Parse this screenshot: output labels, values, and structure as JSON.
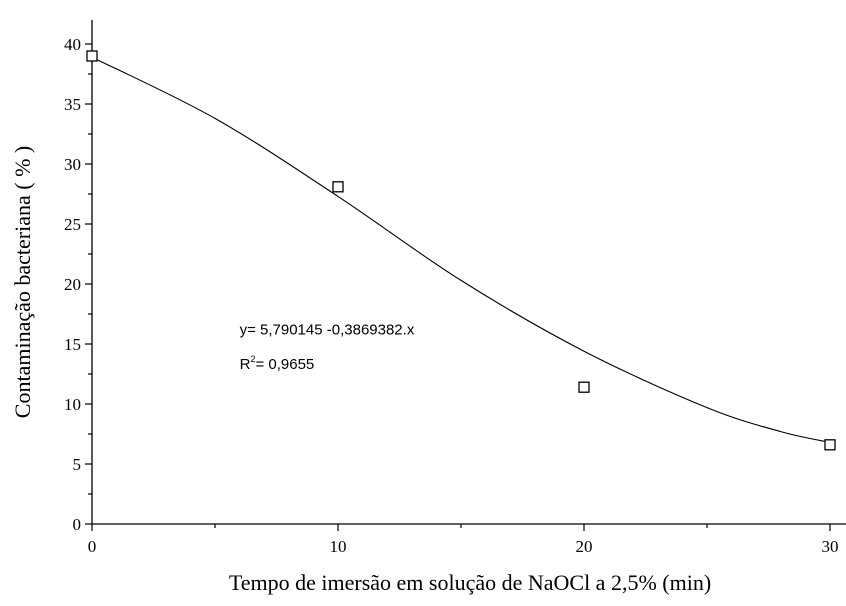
{
  "chart_data": {
    "type": "scatter",
    "xlabel": "Tempo de imersão em solução de NaOCl a 2,5% (min)",
    "ylabel": "Contaminação bacteriana ( % )",
    "xlim": [
      0,
      32
    ],
    "ylim": [
      0,
      42
    ],
    "xticks": [
      0,
      10,
      20,
      30
    ],
    "yticks": [
      0,
      5,
      10,
      15,
      20,
      25,
      30,
      35,
      40
    ],
    "x_minor_step": 5,
    "y_minor_step": 2.5,
    "points": [
      {
        "x": 0,
        "y": 39
      },
      {
        "x": 10,
        "y": 28.1
      },
      {
        "x": 20,
        "y": 11.4
      },
      {
        "x": 30,
        "y": 6.6
      }
    ],
    "fit_curve": {
      "type": "smooth",
      "x": [
        0,
        5,
        10,
        15,
        20,
        25,
        28,
        30
      ],
      "y": [
        38.9,
        33.8,
        27.3,
        20.3,
        14.4,
        9.7,
        7.7,
        6.8
      ]
    },
    "annotation": {
      "equation": "y= 5,790145 -0,3869382.x",
      "r2_prefix": "R",
      "r2_sup": "2",
      "r2_value": "= 0,9655",
      "equation_at": {
        "x": 6,
        "y": 16.2
      },
      "r2_at": {
        "x": 6,
        "y": 13.5
      }
    },
    "grid": false
  }
}
